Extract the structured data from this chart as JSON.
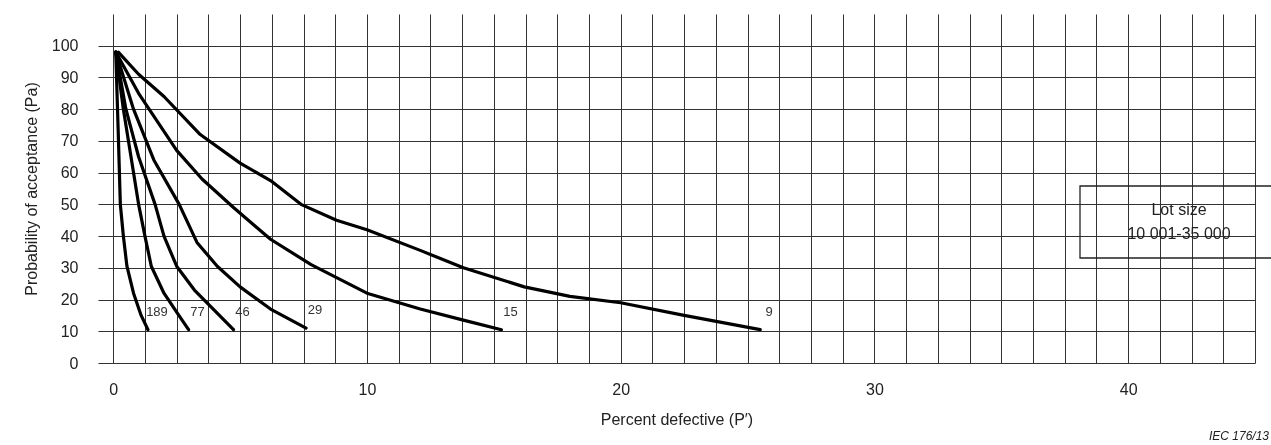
{
  "chart_data": {
    "type": "line",
    "xlabel": "Percent defective   (P′)",
    "ylabel": "Probability of acceptance   (Pa)",
    "xlim": [
      -0.6,
      45
    ],
    "ylim": [
      0,
      110
    ],
    "xticks": [
      0,
      {
        "value": 1.25,
        "label": null
      },
      {
        "value": 2.5,
        "label": null
      },
      {
        "value": 3.75,
        "label": null
      },
      {
        "value": 5,
        "label": null
      },
      {
        "value": 6.25,
        "label": null
      },
      {
        "value": 7.5,
        "label": null
      },
      {
        "value": 8.75,
        "label": null
      },
      10,
      {
        "value": 11.25,
        "label": null
      },
      {
        "value": 12.5,
        "label": null
      },
      {
        "value": 13.75,
        "label": null
      },
      {
        "value": 15,
        "label": null
      },
      {
        "value": 16.25,
        "label": null
      },
      {
        "value": 17.5,
        "label": null
      },
      {
        "value": 18.75,
        "label": null
      },
      20,
      {
        "value": 21.25,
        "label": null
      },
      {
        "value": 22.5,
        "label": null
      },
      {
        "value": 23.75,
        "label": null
      },
      {
        "value": 25,
        "label": null
      },
      {
        "value": 26.25,
        "label": null
      },
      {
        "value": 27.5,
        "label": null
      },
      {
        "value": 28.75,
        "label": null
      },
      30,
      {
        "value": 31.25,
        "label": null
      },
      {
        "value": 32.5,
        "label": null
      },
      {
        "value": 33.75,
        "label": null
      },
      {
        "value": 35,
        "label": null
      },
      {
        "value": 36.25,
        "label": null
      },
      {
        "value": 37.5,
        "label": null
      },
      {
        "value": 38.75,
        "label": null
      },
      40,
      {
        "value": 41.25,
        "label": null
      },
      {
        "value": 42.5,
        "label": null
      },
      {
        "value": 43.75,
        "label": null
      },
      {
        "value": 45,
        "label": null
      }
    ],
    "yticks": [
      0,
      10,
      20,
      30,
      40,
      50,
      60,
      70,
      80,
      90,
      100
    ],
    "grid": true,
    "marker": "none",
    "line_style": "solid",
    "series": [
      {
        "name": "189",
        "color": "#000000",
        "x": [
          0.1,
          0.15,
          0.2,
          0.28,
          0.4,
          0.54,
          0.8,
          1.1,
          1.37
        ],
        "values": [
          98,
          85,
          72,
          50,
          40,
          30.5,
          22,
          15,
          10.5
        ]
      },
      {
        "name": "77",
        "color": "#000000",
        "x": [
          0.1,
          0.4,
          0.7,
          1.0,
          1.25,
          1.5,
          2.0,
          2.5,
          2.97
        ],
        "values": [
          98,
          80,
          65,
          50,
          40,
          30.5,
          22,
          16,
          10.5
        ]
      },
      {
        "name": "46",
        "color": "#000000",
        "x": [
          0.1,
          0.5,
          1.0,
          1.65,
          2.0,
          2.5,
          3.2,
          4.0,
          4.74
        ],
        "values": [
          98,
          80,
          65,
          50,
          40,
          30.5,
          23,
          16.5,
          10.5
        ]
      },
      {
        "name": "29",
        "color": "#000000",
        "x": [
          0.1,
          0.8,
          1.6,
          2.6,
          3.3,
          4.1,
          5.0,
          6.2,
          7.6
        ],
        "values": [
          98,
          80,
          64,
          50,
          38,
          30.5,
          24,
          17,
          11
        ]
      },
      {
        "name": "15",
        "color": "#000000",
        "x": [
          0.1,
          1.0,
          2.5,
          3.5,
          4.74,
          6.2,
          7.8,
          10,
          12.1,
          13.8,
          15.3
        ],
        "values": [
          98,
          85,
          67,
          58,
          49,
          39,
          31,
          22,
          17,
          13.5,
          10.5
        ]
      },
      {
        "name": "9",
        "color": "#000000",
        "x": [
          0.2,
          1,
          2,
          3.43,
          5,
          6.2,
          7.4,
          8.8,
          10,
          12.1,
          13.8,
          16.2,
          18,
          20,
          22.5,
          25.5
        ],
        "values": [
          98,
          91,
          84,
          72,
          63,
          57.5,
          50,
          45,
          42,
          35.5,
          30,
          24,
          21,
          19,
          15,
          10.5
        ]
      }
    ],
    "annotations": [
      "Lot size\n10 001-35 000",
      "IEC   176/13"
    ]
  }
}
